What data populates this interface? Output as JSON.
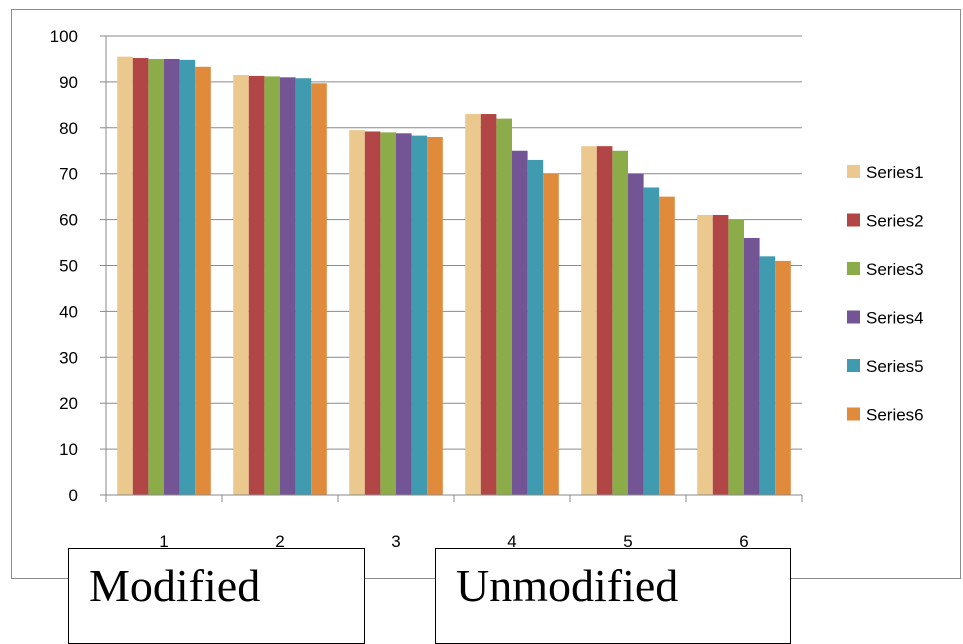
{
  "chart_data": {
    "type": "bar",
    "categories": [
      "1",
      "2",
      "3",
      "4",
      "5",
      "6"
    ],
    "ylim": [
      0,
      100
    ],
    "yticks": [
      "0",
      "10",
      "20",
      "30",
      "40",
      "50",
      "60",
      "70",
      "80",
      "90",
      "100"
    ],
    "grid": true,
    "legend_position": "right",
    "series": [
      {
        "name": "Series1",
        "color": "#EBC98E",
        "values": [
          95.5,
          91.5,
          79.5,
          83,
          76,
          61
        ]
      },
      {
        "name": "Series2",
        "color": "#B24545",
        "values": [
          95.2,
          91.3,
          79.2,
          83,
          76,
          61
        ]
      },
      {
        "name": "Series3",
        "color": "#8CAC4A",
        "values": [
          95,
          91.2,
          79,
          82,
          75,
          60
        ]
      },
      {
        "name": "Series4",
        "color": "#735494",
        "values": [
          95,
          91,
          78.8,
          75,
          70,
          56
        ]
      },
      {
        "name": "Series5",
        "color": "#409BB0",
        "values": [
          94.8,
          90.8,
          78.3,
          73,
          67,
          52
        ]
      },
      {
        "name": "Series6",
        "color": "#E08B3C",
        "values": [
          93.3,
          89.7,
          78,
          70,
          65,
          51
        ]
      }
    ]
  },
  "annotations": {
    "left_box": "Modified",
    "right_box": "Unmodified"
  }
}
